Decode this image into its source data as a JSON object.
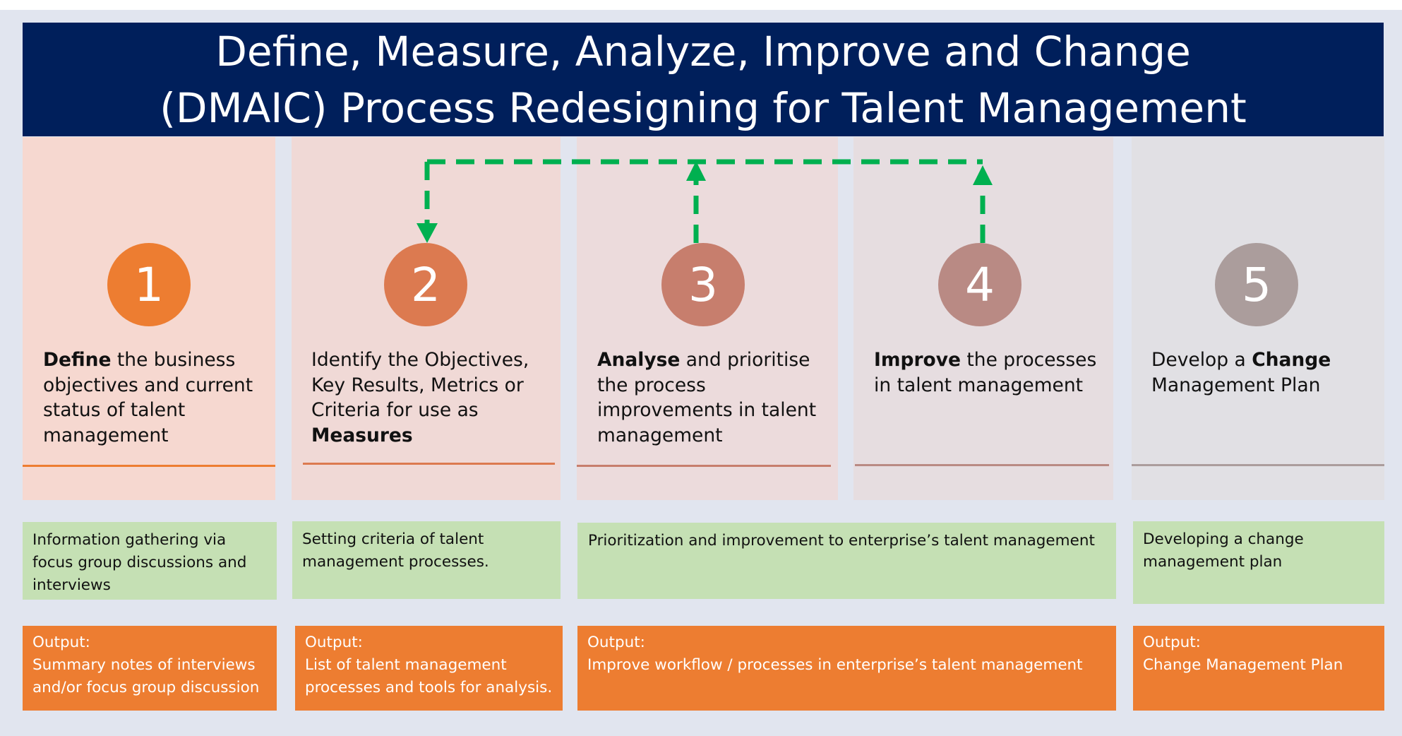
{
  "title": {
    "line1": "Define, Measure, Analyze, Improve and Change",
    "line2": "(DMAIC) Process Redesigning for Talent Management"
  },
  "colors": {
    "banner": "#001f5b",
    "activity_box": "#c5e0b4",
    "output_box": "#ed7d31",
    "feedback_arrow": "#00b050"
  },
  "steps": [
    {
      "number": "1",
      "text_bold": "Define",
      "text_rest": " the business objectives and current status of talent management",
      "circle_color": "#ed7d31",
      "bg": "#f6d8d0",
      "rule_color": "#ed7d31"
    },
    {
      "number": "2",
      "text_plain": "Identify the Objectives, Key Results, Metrics or Criteria for use as ",
      "text_bold": "Measures",
      "circle_color": "#dc7a50",
      "bg": "#f0d9d6",
      "rule_color": "#dc7a50"
    },
    {
      "number": "3",
      "text_bold": "Analyse",
      "text_rest": " and prioritise the process improvements  in talent management",
      "circle_color": "#c77e6d",
      "bg": "#ecdbdc",
      "rule_color": "#c77e6d"
    },
    {
      "number": "4",
      "text_bold": "Improve",
      "text_rest": " the processes in talent management",
      "circle_color": "#b98a84",
      "bg": "#e6dde0",
      "rule_color": "#b98a84"
    },
    {
      "number": "5",
      "text_before": "Develop a ",
      "text_bold": "Change",
      "text_after": " Management Plan",
      "circle_color": "#ab9d9c",
      "bg": "#e1e0e4",
      "rule_color": "#ab9d9c"
    }
  ],
  "activities": [
    "Information gathering via focus group discussions and interviews",
    "Setting criteria  of talent management processes.",
    "Prioritization and improvement to enterprise’s talent management",
    "Developing a change management plan"
  ],
  "outputs": [
    {
      "label": "Output:",
      "text": "Summary notes of interviews and/or focus group discussion"
    },
    {
      "label": "Output:",
      "text": "List of talent management processes and tools for analysis."
    },
    {
      "label": "Output:",
      "text": "Improve workflow / processes in enterprise’s talent management"
    },
    {
      "label": "Output:",
      "text": "Change Management Plan"
    }
  ]
}
